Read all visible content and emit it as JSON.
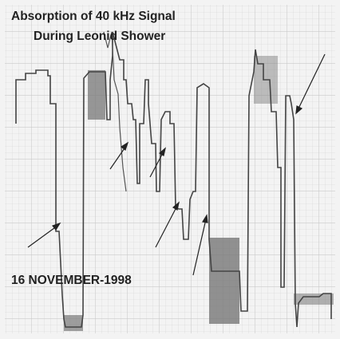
{
  "title": {
    "line1": "Absorption of 40 kHz Signal",
    "line2": "During Leonid Shower"
  },
  "date_label": "16 NOVEMBER-1998"
}
